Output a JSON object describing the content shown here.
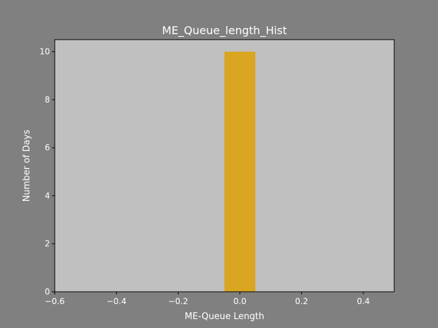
{
  "chart_data": {
    "type": "bar",
    "title": "ME_Queue_length_Hist",
    "xlabel": "ME-Queue Length",
    "ylabel": "Number of Days",
    "xlim": [
      -0.6,
      0.5
    ],
    "ylim": [
      0,
      10.5
    ],
    "x_ticks": [
      "−0.6",
      "−0.4",
      "−0.2",
      "0.0",
      "0.2",
      "0.4"
    ],
    "x_tick_values": [
      -0.6,
      -0.4,
      -0.2,
      0.0,
      0.2,
      0.4
    ],
    "y_ticks": [
      "0",
      "2",
      "4",
      "6",
      "8",
      "10"
    ],
    "y_tick_values": [
      0,
      2,
      4,
      6,
      8,
      10
    ],
    "bins": [
      {
        "x_start": -0.05,
        "x_end": 0.05,
        "value": 10
      }
    ],
    "grid": false,
    "colors": {
      "figure_background": "#808080",
      "plot_background": "#c0c0c0",
      "bar": "#daa520",
      "text": "#ffffff",
      "axis": "#000000"
    }
  }
}
